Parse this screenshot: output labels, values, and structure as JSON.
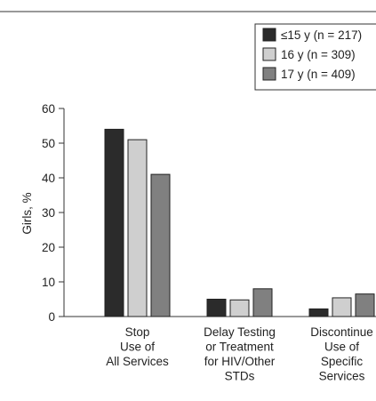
{
  "chart_data": {
    "type": "bar",
    "ylabel": "Girls, %",
    "ylim": [
      0,
      60
    ],
    "yticks": [
      0,
      10,
      20,
      30,
      40,
      50,
      60
    ],
    "grid": false,
    "legend_position": "top-right",
    "categories": [
      [
        "Stop",
        "Use of",
        "All Services"
      ],
      [
        "Delay Testing",
        "or Treatment",
        "for HIV/Other",
        "STDs"
      ],
      [
        "Discontinue",
        "Use of",
        "Specific",
        "Services"
      ]
    ],
    "series": [
      {
        "name": "≤15 y (n = 217)",
        "color": "#2b2b2b",
        "values": [
          54,
          5,
          2.2
        ]
      },
      {
        "name": "16 y (n = 309)",
        "color": "#cfcfcf",
        "values": [
          51,
          4.8,
          5.4
        ]
      },
      {
        "name": "17 y (n = 409)",
        "color": "#808080",
        "values": [
          41,
          8,
          6.5
        ]
      }
    ]
  }
}
